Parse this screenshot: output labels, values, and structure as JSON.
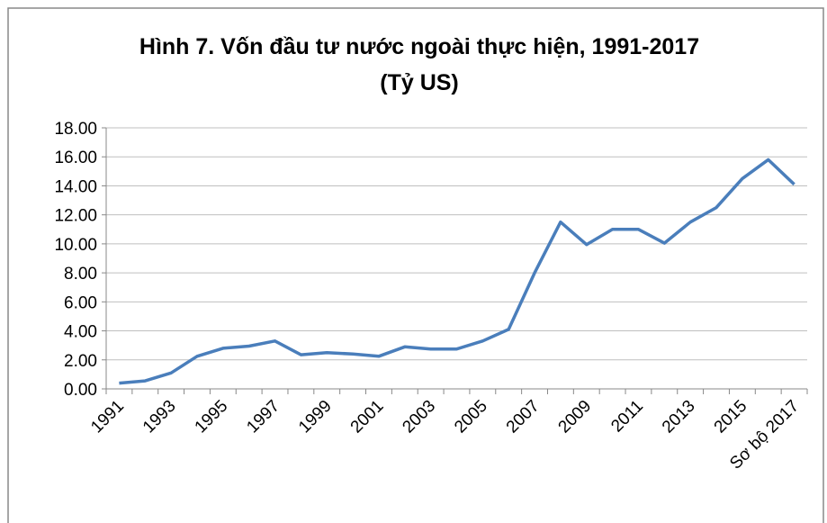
{
  "chart_data": {
    "type": "line",
    "title": [
      "Hình 7. Vốn đầu tư nước ngoài thực hiện, 1991-2017",
      "(Tỷ US)"
    ],
    "categories": [
      "1991",
      null,
      "1993",
      null,
      "1995",
      null,
      "1997",
      null,
      "1999",
      null,
      "2001",
      null,
      "2003",
      null,
      "2005",
      null,
      "2007",
      null,
      "2009",
      null,
      "2011",
      null,
      "2013",
      null,
      "2015",
      null,
      "Sơ bộ 2017"
    ],
    "series": [
      {
        "name": "Vốn đầu tư",
        "color": "#4a7ebb",
        "values": [
          0.4,
          0.55,
          1.1,
          2.25,
          2.8,
          2.95,
          3.3,
          2.35,
          2.5,
          2.4,
          2.25,
          2.9,
          2.75,
          2.75,
          3.3,
          4.1,
          8.0,
          11.5,
          9.95,
          11.0,
          11.0,
          10.05,
          11.5,
          12.5,
          14.5,
          15.8,
          14.1
        ]
      }
    ],
    "ylim": [
      0,
      18
    ],
    "yticks": [
      {
        "value": 0,
        "label": "0.00"
      },
      {
        "value": 2,
        "label": "2.00"
      },
      {
        "value": 4,
        "label": "4.00"
      },
      {
        "value": 6,
        "label": "6.00"
      },
      {
        "value": 8,
        "label": "8.00"
      },
      {
        "value": 10,
        "label": "10.00"
      },
      {
        "value": 12,
        "label": "12.00"
      },
      {
        "value": 14,
        "label": "14.00"
      },
      {
        "value": 16,
        "label": "16.00"
      },
      {
        "value": 18,
        "label": "18.00"
      }
    ],
    "grid": true
  }
}
